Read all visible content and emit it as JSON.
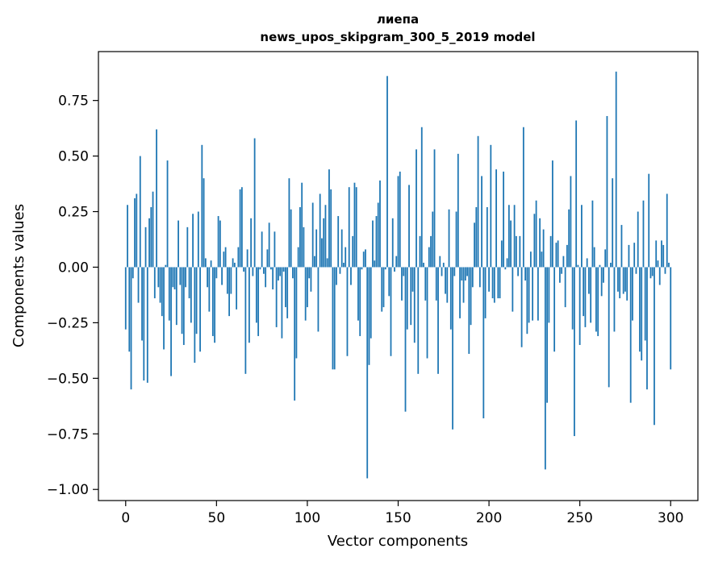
{
  "chart_data": {
    "type": "bar",
    "title": "лиепа",
    "subtitle": "news_upos_skipgram_300_5_2019 model",
    "xlabel": "Vector components",
    "ylabel": "Components values",
    "xlim": [
      -15,
      315
    ],
    "ylim": [
      -1.05,
      0.97
    ],
    "xticks": [
      0,
      50,
      100,
      150,
      200,
      250,
      300
    ],
    "yticks": [
      -1.0,
      -0.75,
      -0.5,
      -0.25,
      0.0,
      0.25,
      0.5,
      0.75
    ],
    "ytick_labels": [
      "−1.00",
      "−0.75",
      "−0.50",
      "−0.25",
      "0.00",
      "0.25",
      "0.50",
      "0.75"
    ],
    "bar_color": "#1f77b4",
    "values": [
      -0.28,
      0.28,
      -0.38,
      -0.55,
      -0.05,
      0.31,
      0.33,
      -0.16,
      0.5,
      -0.33,
      -0.51,
      0.18,
      -0.52,
      0.22,
      0.27,
      0.34,
      -0.14,
      0.62,
      -0.09,
      -0.16,
      -0.22,
      -0.37,
      0.01,
      0.48,
      -0.24,
      -0.49,
      -0.09,
      -0.1,
      -0.26,
      0.21,
      -0.08,
      -0.3,
      -0.35,
      -0.09,
      0.18,
      -0.14,
      -0.25,
      0.24,
      -0.43,
      -0.3,
      0.25,
      -0.38,
      0.55,
      0.4,
      0.04,
      -0.09,
      -0.2,
      0.03,
      -0.31,
      -0.34,
      -0.05,
      0.23,
      0.21,
      -0.08,
      0.07,
      0.09,
      -0.12,
      -0.22,
      -0.12,
      0.04,
      0.02,
      -0.19,
      0.09,
      0.35,
      0.36,
      -0.02,
      -0.48,
      0.08,
      -0.34,
      0.22,
      -0.04,
      0.58,
      -0.25,
      -0.31,
      -0.01,
      0.16,
      -0.03,
      -0.09,
      0.08,
      0.2,
      -0.01,
      -0.1,
      0.16,
      -0.27,
      -0.06,
      -0.04,
      -0.32,
      -0.02,
      -0.18,
      -0.23,
      0.4,
      0.26,
      -0.05,
      -0.6,
      -0.41,
      0.09,
      0.27,
      0.38,
      0.18,
      -0.24,
      -0.18,
      -0.05,
      -0.11,
      0.29,
      0.05,
      0.17,
      -0.29,
      0.33,
      0.13,
      0.22,
      0.28,
      0.04,
      0.44,
      0.35,
      -0.46,
      -0.46,
      -0.08,
      0.23,
      -0.03,
      0.17,
      0.02,
      0.09,
      -0.4,
      0.36,
      -0.08,
      0.14,
      0.38,
      0.36,
      -0.24,
      -0.31,
      -0.01,
      0.07,
      0.08,
      -0.95,
      -0.44,
      -0.32,
      0.21,
      0.03,
      0.23,
      0.29,
      0.39,
      -0.2,
      -0.18,
      -0.01,
      0.86,
      -0.13,
      -0.4,
      0.22,
      -0.02,
      0.05,
      0.41,
      0.43,
      -0.15,
      -0.04,
      -0.65,
      -0.28,
      0.37,
      -0.26,
      -0.11,
      -0.34,
      0.53,
      -0.48,
      0.14,
      0.63,
      0.02,
      -0.15,
      -0.41,
      0.09,
      0.14,
      0.25,
      0.53,
      -0.15,
      -0.48,
      0.05,
      -0.04,
      0.02,
      -0.12,
      -0.16,
      0.26,
      -0.28,
      -0.73,
      -0.04,
      0.25,
      0.51,
      -0.23,
      -0.06,
      -0.16,
      -0.06,
      -0.04,
      -0.39,
      -0.26,
      -0.09,
      0.2,
      0.27,
      0.59,
      -0.09,
      0.41,
      -0.68,
      -0.23,
      0.27,
      -0.11,
      0.55,
      -0.14,
      -0.16,
      0.44,
      -0.14,
      -0.14,
      0.12,
      0.43,
      -0.01,
      0.04,
      0.28,
      0.21,
      -0.2,
      0.28,
      0.14,
      -0.04,
      0.14,
      -0.36,
      0.63,
      -0.06,
      -0.3,
      -0.25,
      0.07,
      -0.24,
      0.24,
      0.3,
      -0.24,
      0.22,
      0.07,
      0.17,
      -0.91,
      -0.61,
      -0.25,
      0.14,
      0.48,
      -0.38,
      0.11,
      0.12,
      -0.07,
      -0.03,
      0.05,
      -0.18,
      0.1,
      0.26,
      0.41,
      -0.28,
      -0.76,
      0.66,
      0.01,
      -0.35,
      0.28,
      -0.22,
      -0.27,
      0.04,
      -0.12,
      -0.25,
      0.3,
      0.09,
      -0.29,
      -0.31,
      0.01,
      -0.13,
      -0.07,
      0.08,
      0.68,
      -0.54,
      0.02,
      0.4,
      -0.29,
      0.88,
      -0.11,
      -0.14,
      0.19,
      -0.12,
      -0.11,
      -0.15,
      0.1,
      -0.61,
      -0.24,
      0.11,
      -0.03,
      0.25,
      -0.38,
      -0.42,
      0.3,
      -0.33,
      -0.55,
      0.42,
      -0.05,
      -0.04,
      -0.71,
      0.12,
      0.03,
      -0.08,
      0.12,
      0.1,
      -0.03,
      0.33,
      0.02,
      -0.46
    ]
  }
}
